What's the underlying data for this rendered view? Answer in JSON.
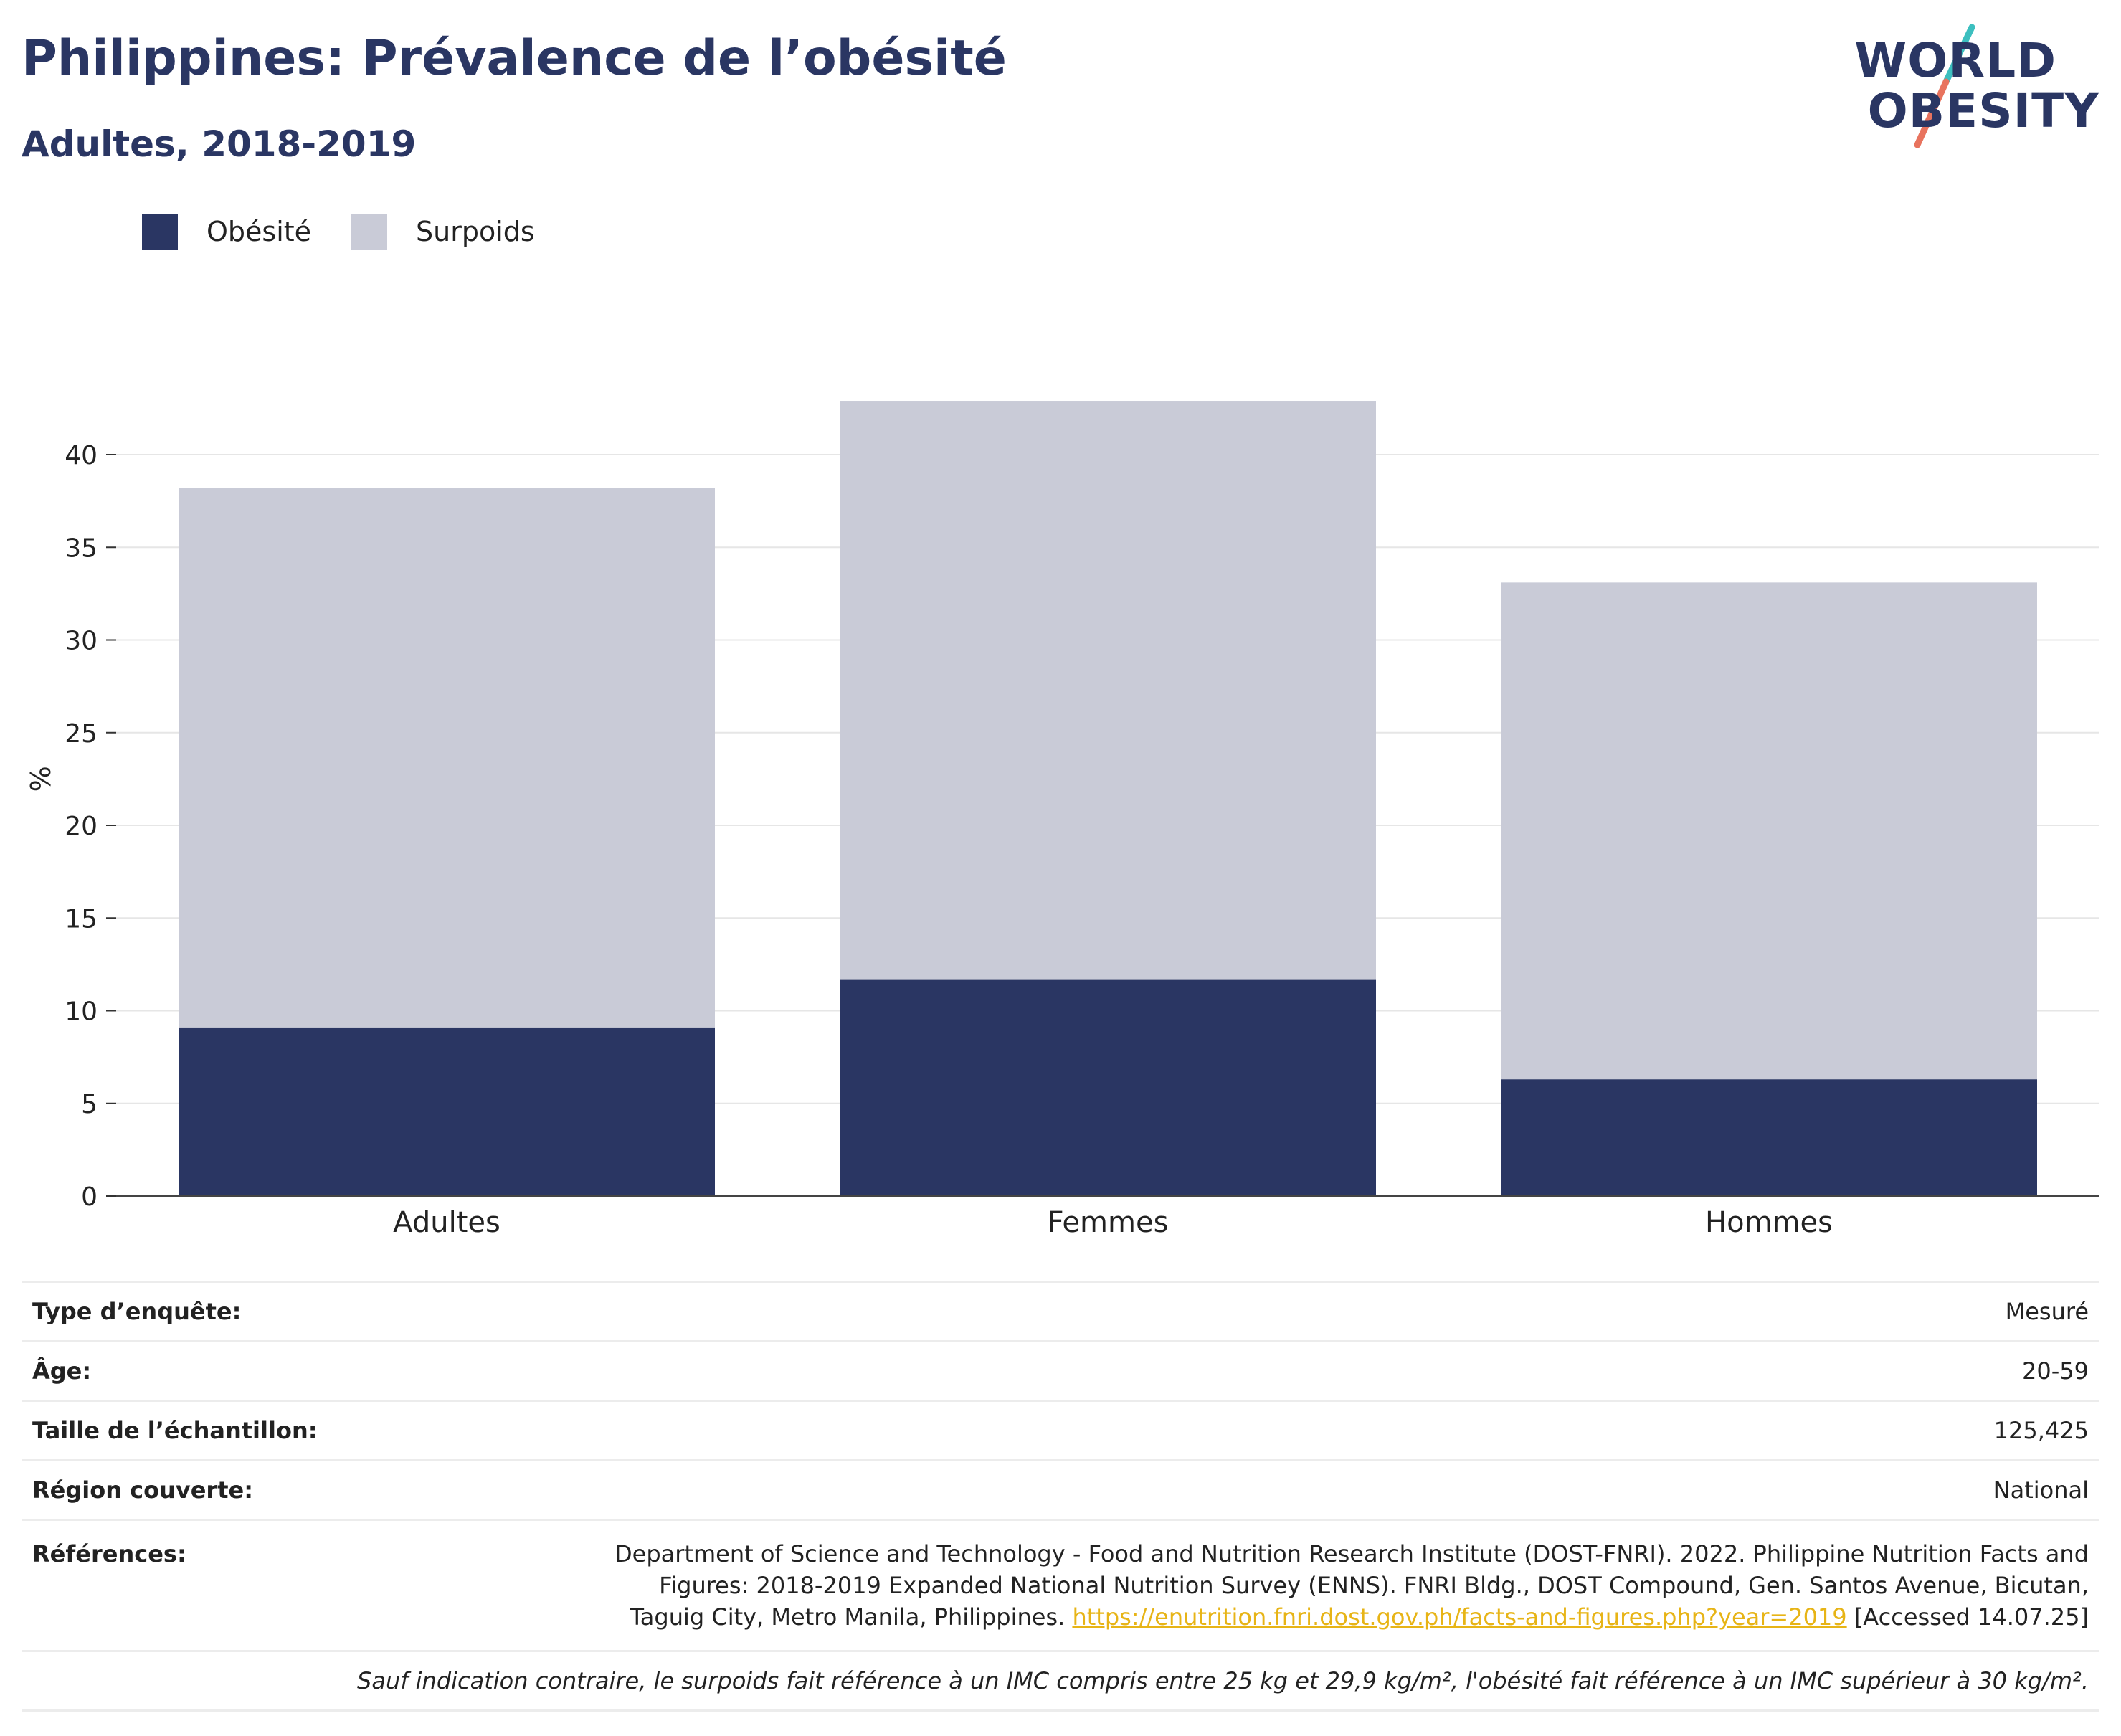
{
  "header": {
    "title": "Philippines: Prévalence de l’obésité",
    "subtitle": "Adultes, 2018-2019"
  },
  "logo": {
    "line1": "WORLD",
    "line2": "OBESITY",
    "slash_colors": [
      "#3cbfbf",
      "#e8735e"
    ]
  },
  "colors": {
    "obesity": "#2a3663",
    "overweight": "#c9cbd7"
  },
  "chart_data": {
    "type": "bar",
    "stacked": true,
    "categories": [
      "Adultes",
      "Femmes",
      "Hommes"
    ],
    "series": [
      {
        "name": "Obésité",
        "values": [
          9.1,
          11.7,
          6.3
        ]
      },
      {
        "name": "Surpoids",
        "values": [
          29.1,
          31.2,
          26.8
        ]
      }
    ],
    "ylabel": "%",
    "ylim": [
      0,
      45
    ],
    "yticks": [
      0,
      5,
      10,
      15,
      20,
      25,
      30,
      35,
      40
    ],
    "grid": true,
    "legend": "top-left"
  },
  "info": {
    "rows": [
      {
        "label": "Type d’enquête:",
        "value": "Mesuré"
      },
      {
        "label": "Âge:",
        "value": "20-59"
      },
      {
        "label": "Taille de l’échantillon:",
        "value": "125,425"
      },
      {
        "label": "Région couverte:",
        "value": "National"
      }
    ],
    "references_label": "Références:",
    "references_text": "Department of Science and Technology - Food and Nutrition Research Institute (DOST-FNRI). 2022. Philippine Nutrition Facts and Figures: 2018-2019 Expanded National Nutrition Survey (ENNS). FNRI Bldg., DOST Compound, Gen. Santos Avenue, Bicutan, Taguig City, Metro Manila, Philippines.",
    "references_link": "https://enutrition.fnri.dost.gov.ph/facts-and-figures.php?year=2019",
    "references_accessed": "[Accessed 14.07.25]",
    "note": "Sauf indication contraire, le surpoids fait référence à un IMC compris entre 25 kg et 29,9 kg/m², l'obésité fait référence à un IMC supérieur à 30 kg/m²."
  }
}
